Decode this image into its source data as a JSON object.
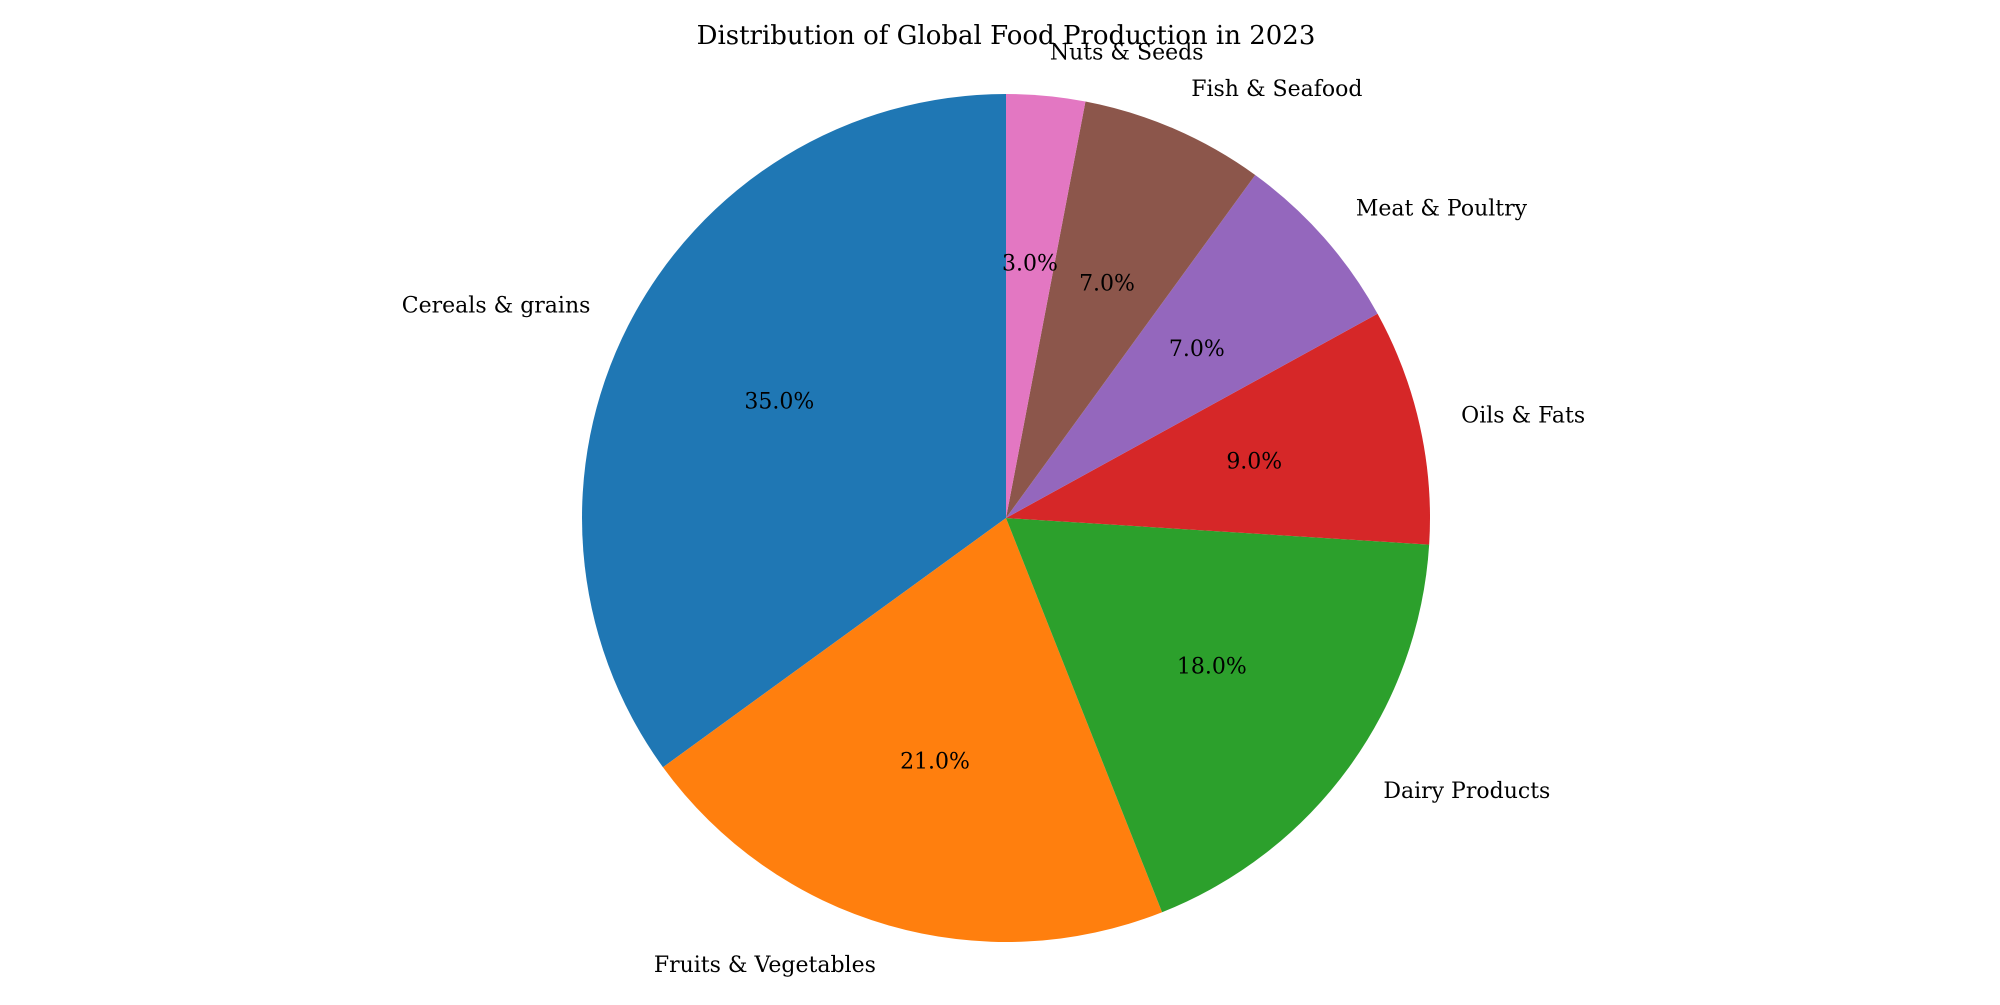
{
  "chart_data": {
    "type": "pie",
    "title": "Distribution of Global Food Production in 2023",
    "start_angle_deg": 90,
    "direction": "counterclockwise",
    "slices": [
      {
        "label": "Cereals & grains",
        "value": 35.0,
        "pct_label": "35.0%",
        "color": "#1f77b4"
      },
      {
        "label": "Fruits & Vegetables",
        "value": 21.0,
        "pct_label": "21.0%",
        "color": "#ff7f0e"
      },
      {
        "label": "Dairy Products",
        "value": 18.0,
        "pct_label": "18.0%",
        "color": "#2ca02c"
      },
      {
        "label": "Oils & Fats",
        "value": 9.0,
        "pct_label": "9.0%",
        "color": "#d62728"
      },
      {
        "label": "Meat & Poultry",
        "value": 7.0,
        "pct_label": "7.0%",
        "color": "#9467bd"
      },
      {
        "label": "Fish & Seafood",
        "value": 7.0,
        "pct_label": "7.0%",
        "color": "#8c564b"
      },
      {
        "label": "Nuts & Seeds",
        "value": 3.0,
        "pct_label": "3.0%",
        "color": "#e377c2"
      }
    ]
  }
}
